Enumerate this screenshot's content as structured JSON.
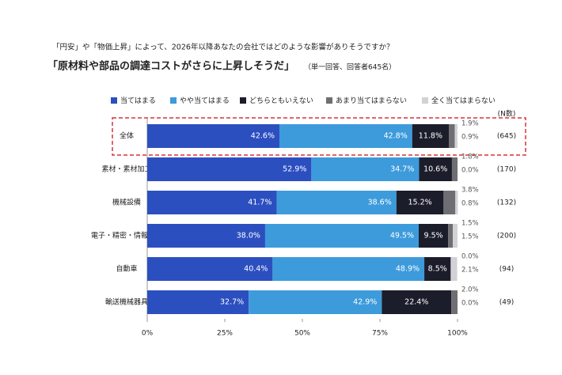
{
  "chart_data": {
    "type": "stacked-barh",
    "title": "「円安」や「物価上昇」によって、2026年以降あなたの会社ではどのような影響がありそうですか？",
    "subtitle": "「原材料や部品の調達コストがさらに上昇しそうだ」",
    "note": "（単一回答、回答者645名）",
    "categories": [
      "全体",
      "素材・素材加工",
      "機械設備",
      "電子・精密・情報機器",
      "自動車",
      "輸送機械器具"
    ],
    "counts_header": "(N数)",
    "counts": [
      "(645)",
      "(170)",
      "(132)",
      "(200)",
      "(94)",
      "(49)"
    ],
    "series": [
      {
        "name": "当てはまる",
        "color": "#2c4fc0",
        "values": [
          42.6,
          52.9,
          41.7,
          38.0,
          40.4,
          32.7
        ],
        "value_labels": [
          "42.6%",
          "52.9%",
          "41.7%",
          "38.0%",
          "40.4%",
          "32.7%"
        ]
      },
      {
        "name": "やや当てはまる",
        "color": "#3d9bdb",
        "values": [
          42.8,
          34.7,
          38.6,
          49.5,
          48.9,
          42.9
        ],
        "value_labels": [
          "42.8%",
          "34.7%",
          "38.6%",
          "49.5%",
          "48.9%",
          "42.9%"
        ]
      },
      {
        "name": "どちらともいえない",
        "color": "#1b1d2b",
        "values": [
          11.8,
          10.6,
          15.2,
          9.5,
          8.5,
          22.4
        ],
        "value_labels": [
          "11.8%",
          "10.6%",
          "15.2%",
          "9.5%",
          "8.5%",
          "22.4%"
        ]
      },
      {
        "name": "あまり当てはまらない",
        "color": "#6e6e73",
        "values": [
          1.9,
          1.8,
          3.8,
          1.5,
          0.0,
          2.0
        ],
        "value_labels": [
          "1.9%",
          "1.8%",
          "3.8%",
          "1.5%",
          "0.0%",
          "2.0%"
        ]
      },
      {
        "name": "全く当てはまらない",
        "color": "#d2d2d6",
        "values": [
          0.9,
          0.0,
          0.8,
          1.5,
          2.1,
          0.0
        ],
        "value_labels": [
          "0.9%",
          "0.0%",
          "0.8%",
          "1.5%",
          "2.1%",
          "0.0%"
        ]
      }
    ],
    "xlim": [
      0,
      100
    ],
    "xticks": [
      {
        "value": 0,
        "label": "0%"
      },
      {
        "value": 25,
        "label": "25%"
      },
      {
        "value": 50,
        "label": "50%"
      },
      {
        "value": 75,
        "label": "75%"
      },
      {
        "value": 100,
        "label": "100%"
      }
    ]
  }
}
